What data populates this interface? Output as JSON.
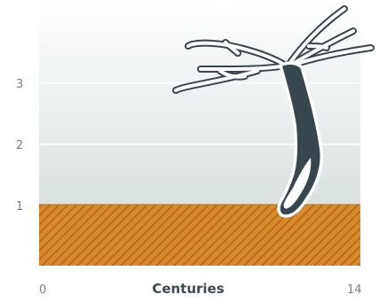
{
  "chart_data": {
    "type": "diagram",
    "xlabel": "Centuries",
    "xlim": [
      0,
      14
    ],
    "x_tick_labels": [
      "0",
      "14"
    ],
    "y_tick_labels": [
      "1",
      "2",
      "3"
    ],
    "ground_level": 1,
    "grid": true
  },
  "colors": {
    "soil": "#d98a2b",
    "soil_hatch": "#a85a12",
    "sky_top": "#ffffff",
    "sky_bottom": "#d9e1e1",
    "gridline": "#ffffff",
    "trunk_dark": "#38464d",
    "trunk_outline": "#ffffff",
    "axis_text": "#7a7f84",
    "axis_title": "#3e4a52"
  }
}
